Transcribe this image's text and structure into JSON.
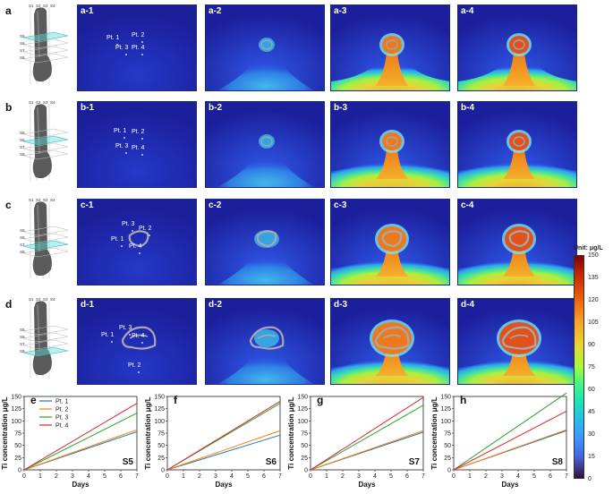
{
  "rows": [
    {
      "id": "a",
      "panels": [
        "a-1",
        "a-2",
        "a-3",
        "a-4"
      ],
      "points": [
        "Pt. 1",
        "Pt. 2",
        "Pt. 3",
        "Pt. 4"
      ]
    },
    {
      "id": "b",
      "panels": [
        "b-1",
        "b-2",
        "b-3",
        "b-4"
      ],
      "points": [
        "Pt. 1",
        "Pt. 2",
        "Pt. 3",
        "Pt. 4"
      ]
    },
    {
      "id": "c",
      "panels": [
        "c-1",
        "c-2",
        "c-3",
        "c-4"
      ],
      "points": [
        "Pt. 1",
        "Pt. 2",
        "Pt. 3",
        "Pt. 4"
      ]
    },
    {
      "id": "d",
      "panels": [
        "d-1",
        "d-2",
        "d-3",
        "d-4"
      ],
      "points": [
        "Pt. 1",
        "Pt. 2",
        "Pt. 3",
        "Pt. 4"
      ]
    }
  ],
  "model_labels": {
    "top": [
      "S1",
      "S2",
      "S3",
      "S4"
    ],
    "side": [
      "S5",
      "S6",
      "S7",
      "S8"
    ]
  },
  "colorbar": {
    "unit": "Unit: μg/L",
    "ticks": [
      "150",
      "135",
      "120",
      "105",
      "90",
      "75",
      "60",
      "45",
      "30",
      "15",
      "0"
    ]
  },
  "colors": {
    "pt1": "#1f77b4",
    "pt2": "#ff7f0e",
    "pt3": "#2ca02c",
    "pt4": "#d62728"
  },
  "chart_data": [
    {
      "type": "line",
      "panel": "e",
      "title": "S5",
      "xlabel": "Days",
      "ylabel": "Ti concentration μg/L",
      "xlim": [
        0,
        7
      ],
      "ylim": [
        0,
        150
      ],
      "xticks": [
        "0",
        "1",
        "2",
        "3",
        "4",
        "5",
        "6",
        "7"
      ],
      "yticks": [
        "0",
        "25",
        "50",
        "75",
        "100",
        "125",
        "150"
      ],
      "legend": [
        "Pt. 1",
        "Pt. 2",
        "Pt. 3",
        "Pt. 4"
      ],
      "series": [
        {
          "name": "Pt. 1",
          "x": [
            0,
            7
          ],
          "values": [
            0,
            78
          ]
        },
        {
          "name": "Pt. 2",
          "x": [
            0,
            7
          ],
          "values": [
            0,
            82
          ]
        },
        {
          "name": "Pt. 3",
          "x": [
            0,
            7
          ],
          "values": [
            0,
            116
          ]
        },
        {
          "name": "Pt. 4",
          "x": [
            0,
            7
          ],
          "values": [
            0,
            136
          ]
        }
      ]
    },
    {
      "type": "line",
      "panel": "f",
      "title": "S6",
      "xlabel": "Days",
      "ylabel": "Ti concentration μg/L",
      "xlim": [
        0,
        7
      ],
      "ylim": [
        0,
        150
      ],
      "xticks": [
        "0",
        "1",
        "2",
        "3",
        "4",
        "5",
        "6",
        "7"
      ],
      "yticks": [
        "0",
        "25",
        "50",
        "75",
        "100",
        "125",
        "150"
      ],
      "series": [
        {
          "name": "Pt. 1",
          "x": [
            0,
            7
          ],
          "values": [
            0,
            71
          ]
        },
        {
          "name": "Pt. 2",
          "x": [
            0,
            7
          ],
          "values": [
            0,
            80
          ]
        },
        {
          "name": "Pt. 3",
          "x": [
            0,
            7
          ],
          "values": [
            0,
            136
          ]
        },
        {
          "name": "Pt. 4",
          "x": [
            0,
            7
          ],
          "values": [
            0,
            140
          ]
        }
      ]
    },
    {
      "type": "line",
      "panel": "g",
      "title": "S7",
      "xlabel": "Days",
      "ylabel": "Ti concentration μg/L",
      "xlim": [
        0,
        7
      ],
      "ylim": [
        0,
        150
      ],
      "xticks": [
        "0",
        "1",
        "2",
        "3",
        "4",
        "5",
        "6",
        "7"
      ],
      "yticks": [
        "0",
        "25",
        "50",
        "75",
        "100",
        "125",
        "150"
      ],
      "series": [
        {
          "name": "Pt. 1",
          "x": [
            0,
            7
          ],
          "values": [
            0,
            77
          ]
        },
        {
          "name": "Pt. 2",
          "x": [
            0,
            7
          ],
          "values": [
            0,
            80
          ]
        },
        {
          "name": "Pt. 3",
          "x": [
            0,
            7
          ],
          "values": [
            0,
            132
          ]
        },
        {
          "name": "Pt. 4",
          "x": [
            0,
            7
          ],
          "values": [
            0,
            148
          ]
        }
      ]
    },
    {
      "type": "line",
      "panel": "h",
      "title": "S8",
      "xlabel": "Days",
      "ylabel": "Ti concentration μg/L",
      "xlim": [
        0,
        7
      ],
      "ylim": [
        0,
        150
      ],
      "xticks": [
        "0",
        "1",
        "2",
        "3",
        "4",
        "5",
        "6",
        "7"
      ],
      "yticks": [
        "0",
        "25",
        "50",
        "75",
        "100",
        "125",
        "150"
      ],
      "series": [
        {
          "name": "Pt. 1",
          "x": [
            0,
            7
          ],
          "values": [
            0,
            80
          ]
        },
        {
          "name": "Pt. 2",
          "x": [
            0,
            7
          ],
          "values": [
            0,
            82
          ]
        },
        {
          "name": "Pt. 3",
          "x": [
            0,
            7
          ],
          "values": [
            0,
            157
          ]
        },
        {
          "name": "Pt. 4",
          "x": [
            0,
            7
          ],
          "values": [
            0,
            120
          ]
        }
      ]
    }
  ]
}
